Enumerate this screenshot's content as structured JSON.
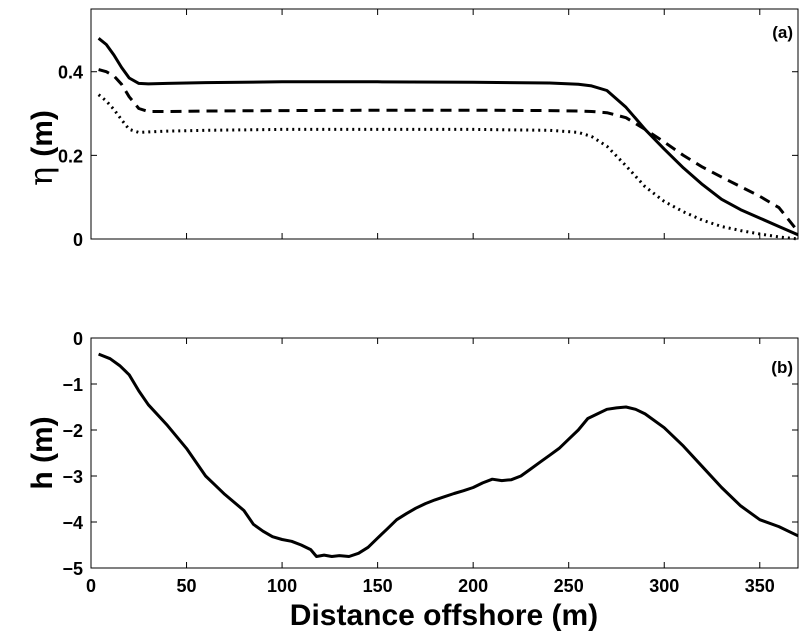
{
  "chart_data": [
    {
      "type": "line",
      "panel_label": "(a)",
      "ylabel_symbol": "η",
      "ylabel_unit": "(m)",
      "xlim": [
        0,
        370
      ],
      "ylim": [
        0,
        0.55
      ],
      "xticks": [
        0,
        50,
        100,
        150,
        200,
        250,
        300,
        350
      ],
      "show_xtick_labels": false,
      "yticks": [
        0,
        0.2,
        0.4
      ],
      "ytick_labels": [
        "0",
        "0.2",
        "0.4"
      ],
      "grid": false,
      "series": [
        {
          "style": "solid",
          "x": [
            4,
            8,
            12,
            16,
            20,
            25,
            30,
            40,
            60,
            100,
            150,
            200,
            240,
            255,
            262,
            270,
            280,
            290,
            300,
            310,
            320,
            330,
            340,
            350,
            360,
            370
          ],
          "y": [
            0.48,
            0.465,
            0.44,
            0.41,
            0.385,
            0.372,
            0.371,
            0.372,
            0.374,
            0.376,
            0.376,
            0.375,
            0.373,
            0.37,
            0.366,
            0.355,
            0.315,
            0.262,
            0.215,
            0.17,
            0.13,
            0.095,
            0.07,
            0.05,
            0.03,
            0.01
          ]
        },
        {
          "style": "dashed",
          "x": [
            4,
            8,
            12,
            16,
            20,
            25,
            30,
            40,
            60,
            100,
            150,
            200,
            240,
            255,
            262,
            270,
            280,
            290,
            300,
            310,
            320,
            330,
            340,
            350,
            360,
            370
          ],
          "y": [
            0.405,
            0.4,
            0.39,
            0.37,
            0.34,
            0.312,
            0.305,
            0.305,
            0.306,
            0.307,
            0.308,
            0.308,
            0.307,
            0.306,
            0.305,
            0.302,
            0.29,
            0.262,
            0.232,
            0.2,
            0.172,
            0.148,
            0.125,
            0.102,
            0.075,
            0.018
          ]
        },
        {
          "style": "dotted",
          "x": [
            4,
            8,
            12,
            16,
            20,
            25,
            30,
            40,
            60,
            100,
            150,
            200,
            240,
            255,
            262,
            270,
            280,
            290,
            300,
            310,
            320,
            330,
            340,
            350,
            360,
            370
          ],
          "y": [
            0.345,
            0.33,
            0.31,
            0.285,
            0.262,
            0.255,
            0.256,
            0.258,
            0.26,
            0.262,
            0.262,
            0.262,
            0.26,
            0.255,
            0.245,
            0.222,
            0.175,
            0.125,
            0.09,
            0.065,
            0.045,
            0.03,
            0.02,
            0.012,
            0.005,
            0.0
          ]
        }
      ]
    },
    {
      "type": "line",
      "panel_label": "(b)",
      "ylabel": "h (m)",
      "xlabel": "Distance offshore (m)",
      "xlim": [
        0,
        370
      ],
      "ylim": [
        -5,
        0
      ],
      "xticks": [
        0,
        50,
        100,
        150,
        200,
        250,
        300,
        350
      ],
      "xtick_labels": [
        "0",
        "50",
        "100",
        "150",
        "200",
        "250",
        "300",
        "350"
      ],
      "yticks": [
        0,
        -1,
        -2,
        -3,
        -4,
        -5
      ],
      "ytick_labels": [
        "0",
        "−1",
        "−2",
        "−3",
        "−4",
        "−5"
      ],
      "grid": false,
      "series": [
        {
          "style": "solid",
          "x": [
            4,
            10,
            15,
            20,
            25,
            30,
            40,
            50,
            60,
            65,
            70,
            80,
            85,
            90,
            95,
            100,
            105,
            110,
            115,
            118,
            122,
            126,
            130,
            135,
            140,
            145,
            150,
            155,
            160,
            165,
            170,
            175,
            180,
            185,
            190,
            195,
            200,
            205,
            210,
            215,
            220,
            225,
            230,
            235,
            240,
            245,
            250,
            255,
            260,
            265,
            270,
            275,
            280,
            285,
            290,
            300,
            310,
            320,
            330,
            340,
            350,
            360,
            370
          ],
          "y": [
            -0.35,
            -0.45,
            -0.6,
            -0.8,
            -1.15,
            -1.45,
            -1.9,
            -2.4,
            -3.0,
            -3.2,
            -3.4,
            -3.75,
            -4.05,
            -4.2,
            -4.32,
            -4.38,
            -4.42,
            -4.5,
            -4.6,
            -4.75,
            -4.72,
            -4.75,
            -4.73,
            -4.75,
            -4.68,
            -4.55,
            -4.35,
            -4.15,
            -3.95,
            -3.82,
            -3.7,
            -3.6,
            -3.52,
            -3.45,
            -3.38,
            -3.32,
            -3.25,
            -3.15,
            -3.07,
            -3.1,
            -3.08,
            -3.0,
            -2.85,
            -2.7,
            -2.55,
            -2.4,
            -2.2,
            -2.0,
            -1.75,
            -1.65,
            -1.55,
            -1.52,
            -1.5,
            -1.55,
            -1.65,
            -1.95,
            -2.35,
            -2.8,
            -3.25,
            -3.65,
            -3.95,
            -4.1,
            -4.3
          ]
        }
      ]
    }
  ]
}
